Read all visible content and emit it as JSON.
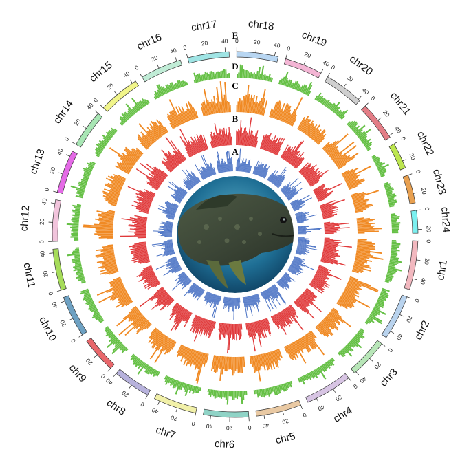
{
  "chart_data": {
    "type": "circos",
    "chromosomes": [
      {
        "name": "chr1",
        "length": 52,
        "color": "#f2b8bf"
      },
      {
        "name": "chr2",
        "length": 48,
        "color": "#b9d3ee"
      },
      {
        "name": "chr3",
        "length": 42,
        "color": "#b8e6b8"
      },
      {
        "name": "chr4",
        "length": 50,
        "color": "#d7c4e3"
      },
      {
        "name": "chr5",
        "length": 48,
        "color": "#e9c9a3"
      },
      {
        "name": "chr6",
        "length": 48,
        "color": "#8fd3c6"
      },
      {
        "name": "chr7",
        "length": 46,
        "color": "#f1f0a8"
      },
      {
        "name": "chr8",
        "length": 40,
        "color": "#b7b2dc"
      },
      {
        "name": "chr9",
        "length": 38,
        "color": "#e8676b"
      },
      {
        "name": "chr10",
        "length": 44,
        "color": "#6ea1c2"
      },
      {
        "name": "chr11",
        "length": 44,
        "color": "#a6dc5a"
      },
      {
        "name": "chr12",
        "length": 44,
        "color": "#f1c4dc"
      },
      {
        "name": "chr13",
        "length": 46,
        "color": "#e46ae6"
      },
      {
        "name": "chr14",
        "length": 40,
        "color": "#a8e6b4"
      },
      {
        "name": "chr15",
        "length": 44,
        "color": "#f1f58a"
      },
      {
        "name": "chr16",
        "length": 44,
        "color": "#c0ecd6"
      },
      {
        "name": "chr17",
        "length": 44,
        "color": "#9fe4e4"
      },
      {
        "name": "chr18",
        "length": 44,
        "color": "#b8d6f2"
      },
      {
        "name": "chr19",
        "length": 40,
        "color": "#f3b5d4"
      },
      {
        "name": "chr20",
        "length": 42,
        "color": "#cfcfcf"
      },
      {
        "name": "chr21",
        "length": 42,
        "color": "#e37d86"
      },
      {
        "name": "chr22",
        "length": 28,
        "color": "#bde650"
      },
      {
        "name": "chr23",
        "length": 30,
        "color": "#e8a050"
      },
      {
        "name": "chr24",
        "length": 24,
        "color": "#7cf0f0"
      }
    ],
    "tick_values": [
      0,
      20,
      40
    ],
    "tracks": [
      {
        "label": "A",
        "type": "histogram",
        "color": "#4a72c4"
      },
      {
        "label": "B",
        "type": "histogram",
        "color": "#e0393a"
      },
      {
        "label": "C",
        "type": "histogram",
        "color": "#f08a24"
      },
      {
        "label": "D",
        "type": "histogram",
        "color": "#66c046"
      },
      {
        "label": "E",
        "type": "ideogram"
      }
    ],
    "center_image": "grouper-fish"
  }
}
